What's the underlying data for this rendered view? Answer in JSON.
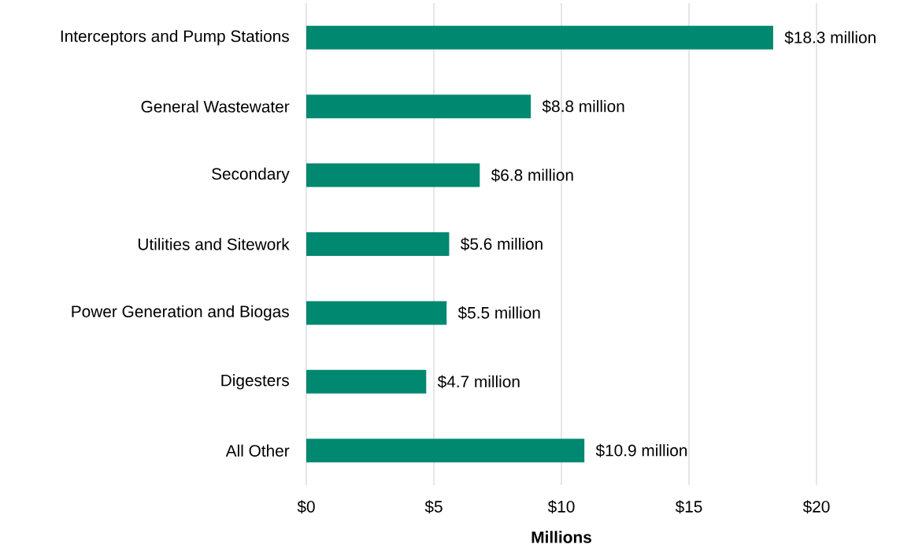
{
  "chart_data": {
    "type": "bar",
    "orientation": "horizontal",
    "categories": [
      "Interceptors and Pump Stations",
      "General Wastewater",
      "Secondary",
      "Utilities and Sitework",
      "Power Generation and Biogas",
      "Digesters",
      "All Other"
    ],
    "values": [
      18.3,
      8.8,
      6.8,
      5.6,
      5.5,
      4.7,
      10.9
    ],
    "value_labels": [
      "$18.3 million",
      "$8.8 million",
      "$6.8 million",
      "$5.6 million",
      "$5.5 million",
      "$4.7 million",
      "$10.9 million"
    ],
    "color": "#008870",
    "xlabel": "Millions",
    "xlim": [
      0,
      20
    ],
    "xticks": [
      {
        "value": 0,
        "label": "$0"
      },
      {
        "value": 5,
        "label": "$5"
      },
      {
        "value": 10,
        "label": "$10"
      },
      {
        "value": 15,
        "label": "$15"
      },
      {
        "value": 20,
        "label": "$20"
      }
    ],
    "grid": "x"
  }
}
